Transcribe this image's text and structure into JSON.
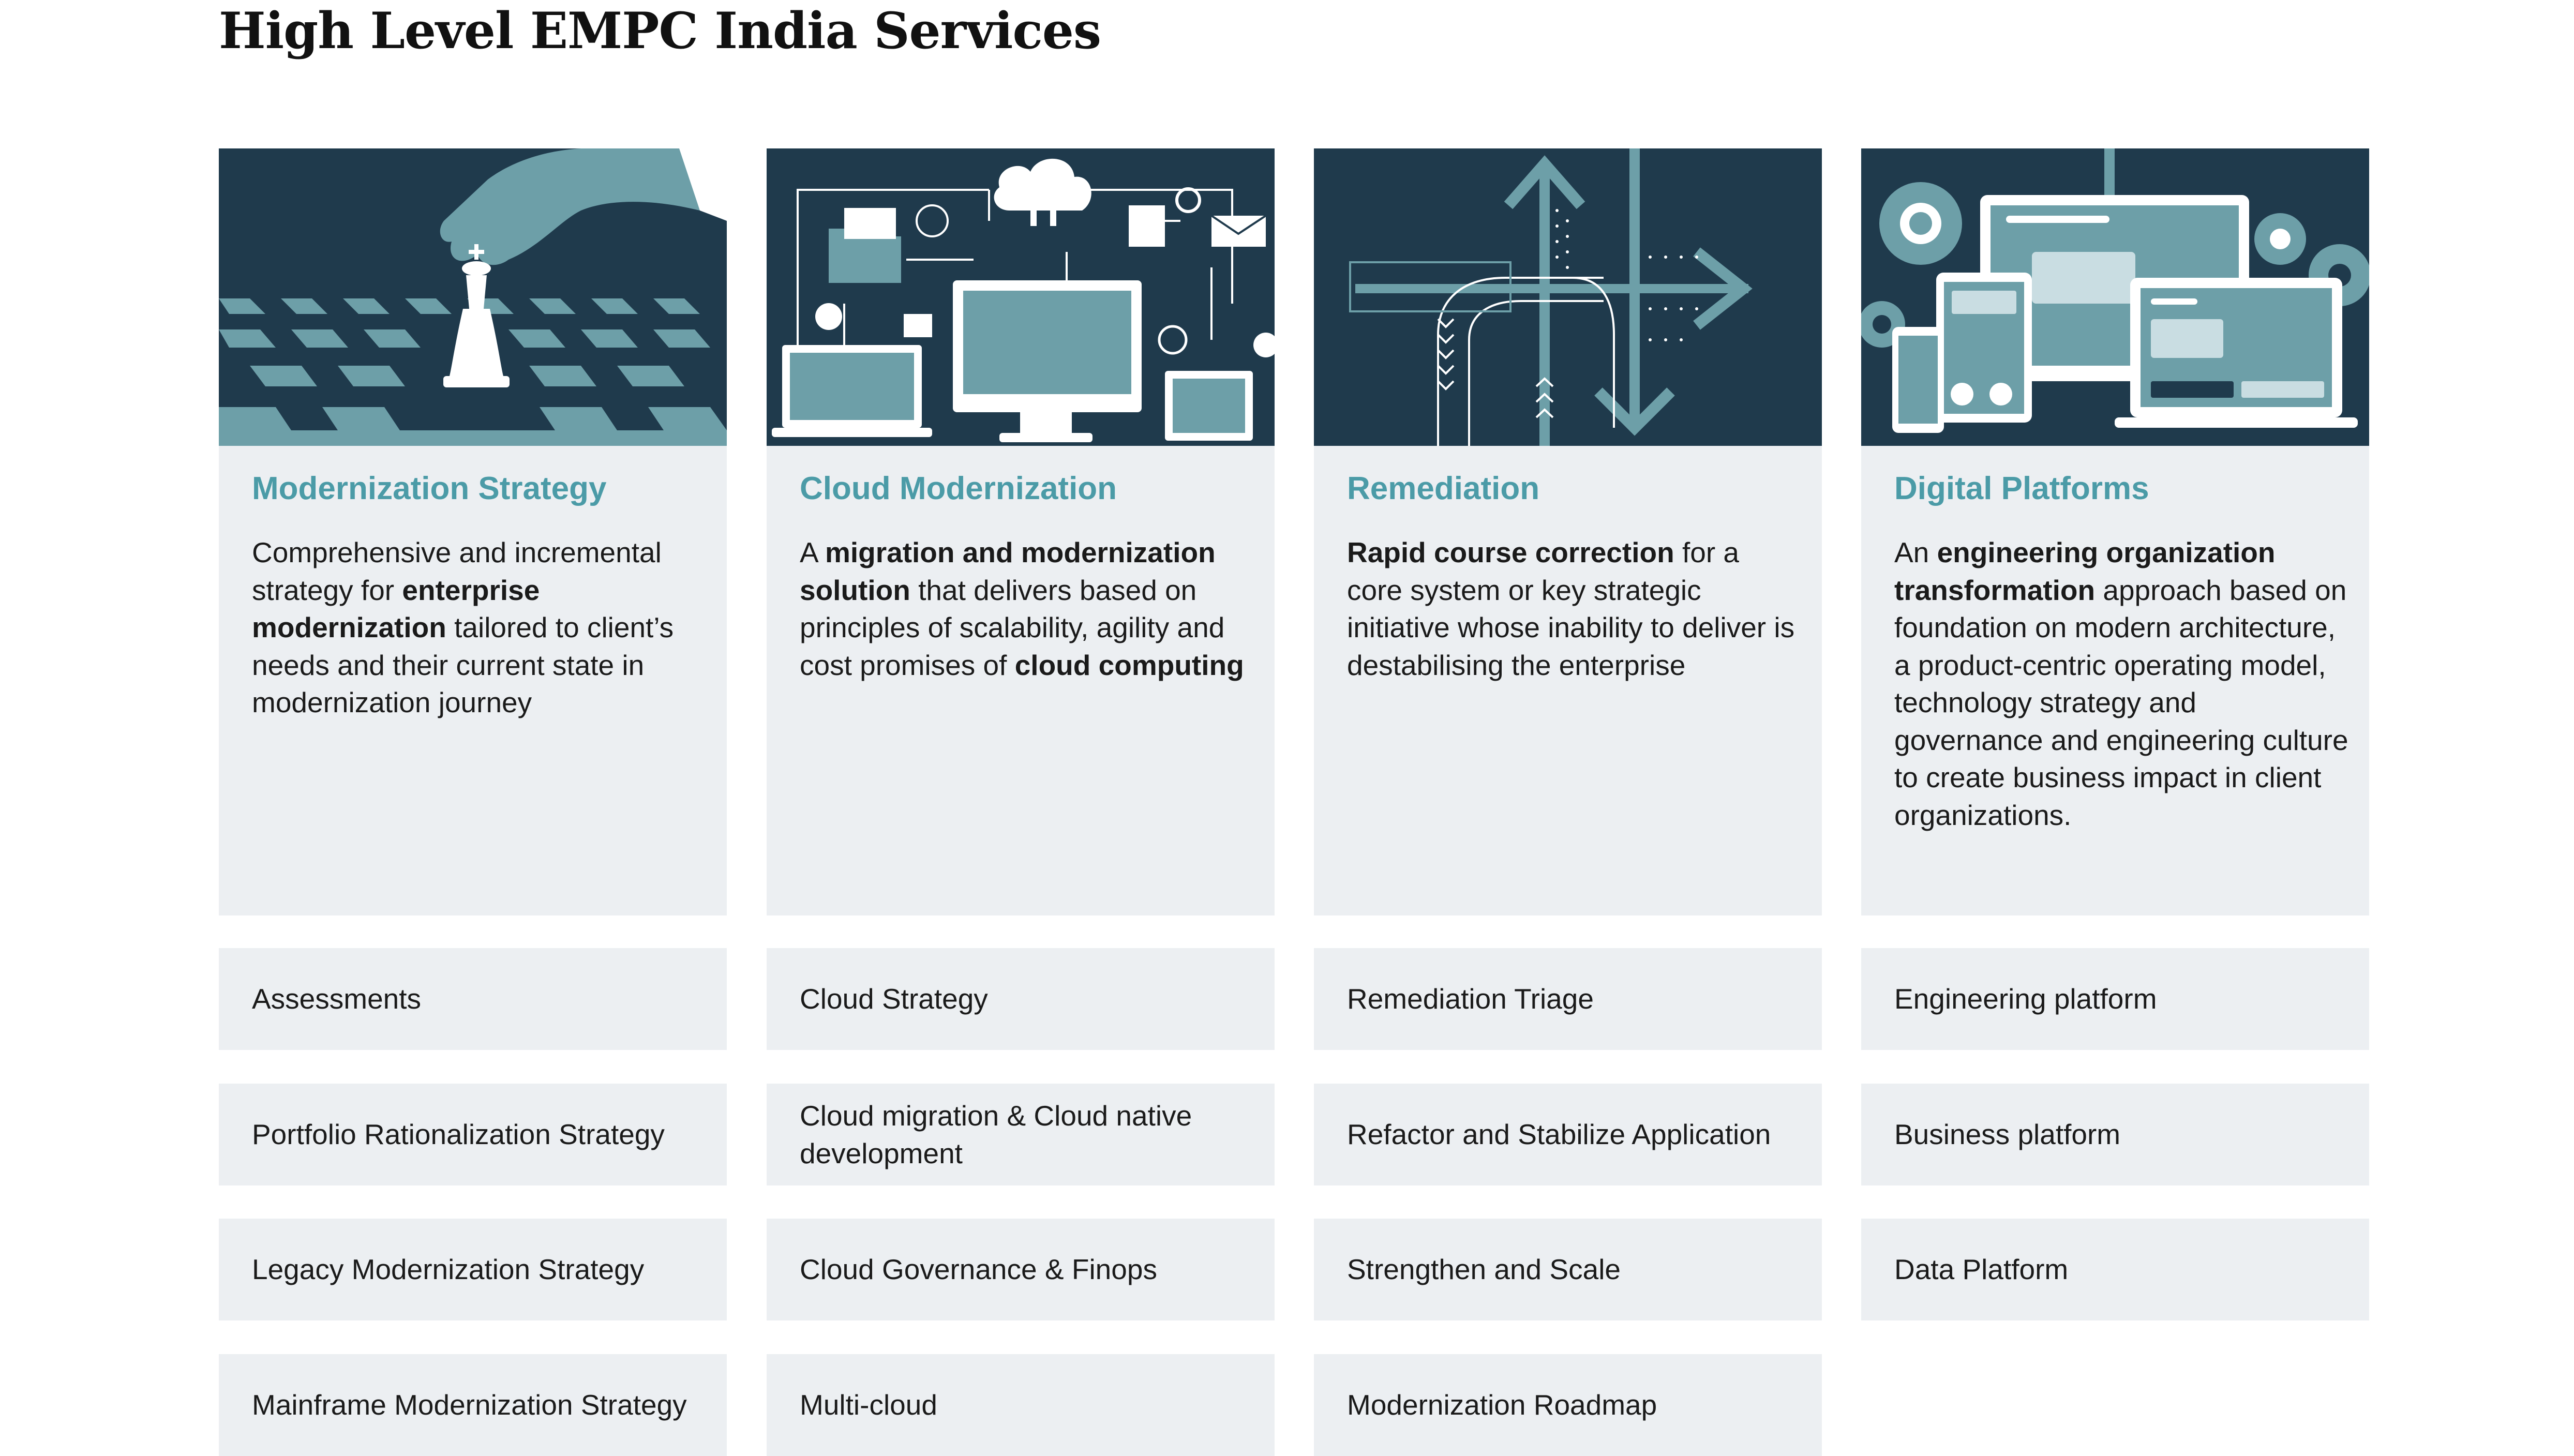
{
  "page": {
    "title": "High Level EMPC India Services"
  },
  "colors": {
    "card_background": "#eceff2",
    "image_background": "#1f3a4c",
    "accent": "#4b9ba7",
    "illustration_light": "#6d9fa8",
    "illustration_white": "#ffffff"
  },
  "columns": [
    {
      "icon": "chess-king-hand-illustration",
      "title": "Modernization Strategy",
      "description": [
        {
          "text": "Comprehensive and incremental strategy for ",
          "bold": false
        },
        {
          "text": "enterprise modernization",
          "bold": true
        },
        {
          "text": " tailored to client’s needs and their current state in modernization journey",
          "bold": false
        }
      ],
      "services": [
        "Assessments",
        "Portfolio Rationalization Strategy",
        "Legacy Modernization Strategy",
        "Mainframe Modernization Strategy"
      ]
    },
    {
      "icon": "cloud-network-illustration",
      "title": "Cloud Modernization",
      "description": [
        {
          "text": "A ",
          "bold": false
        },
        {
          "text": "migration and modernization solution",
          "bold": true
        },
        {
          "text": " that delivers based on principles of scalability, agility and cost promises of ",
          "bold": false
        },
        {
          "text": "cloud computing",
          "bold": true
        }
      ],
      "services": [
        "Cloud Strategy",
        "Cloud migration & Cloud native development",
        "Cloud Governance & Finops",
        "Multi-cloud"
      ]
    },
    {
      "icon": "arrows-course-correction-illustration",
      "title": "Remediation",
      "description": [
        {
          "text": "Rapid course correction",
          "bold": true
        },
        {
          "text": " for a core system or key strategic initiative whose inability to deliver is destabilising the enterprise",
          "bold": false
        }
      ],
      "services": [
        "Remediation Triage",
        "Refactor and Stabilize Application",
        "Strengthen and Scale",
        "Modernization Roadmap"
      ]
    },
    {
      "icon": "devices-gears-illustration",
      "title": "Digital Platforms",
      "description": [
        {
          "text": "An ",
          "bold": false
        },
        {
          "text": "engineering organization transformation",
          "bold": true
        },
        {
          "text": " approach based on foundation on modern architecture, a product-centric operating model, technology strategy and governance and engineering culture to create business impact in client organizations.",
          "bold": false
        }
      ],
      "services": [
        "Engineering platform",
        "Business platform",
        "Data Platform"
      ]
    }
  ]
}
